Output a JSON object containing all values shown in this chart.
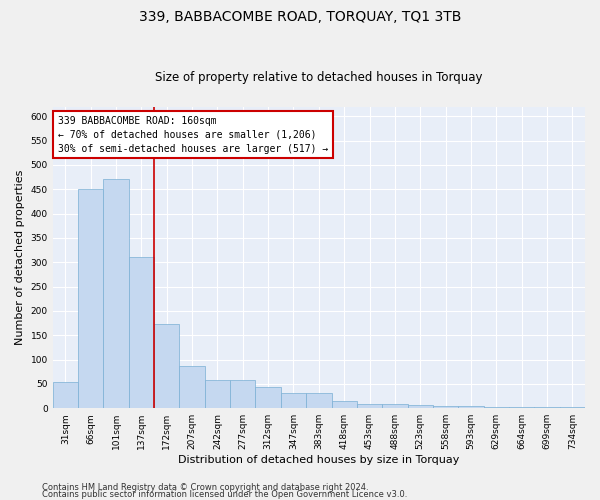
{
  "title": "339, BABBACOMBE ROAD, TORQUAY, TQ1 3TB",
  "subtitle": "Size of property relative to detached houses in Torquay",
  "xlabel": "Distribution of detached houses by size in Torquay",
  "ylabel": "Number of detached properties",
  "categories": [
    "31sqm",
    "66sqm",
    "101sqm",
    "137sqm",
    "172sqm",
    "207sqm",
    "242sqm",
    "277sqm",
    "312sqm",
    "347sqm",
    "383sqm",
    "418sqm",
    "453sqm",
    "488sqm",
    "523sqm",
    "558sqm",
    "593sqm",
    "629sqm",
    "664sqm",
    "699sqm",
    "734sqm"
  ],
  "values": [
    54,
    450,
    470,
    311,
    174,
    87,
    58,
    58,
    43,
    31,
    31,
    15,
    9,
    8,
    7,
    5,
    5,
    3,
    3,
    2,
    3
  ],
  "bar_color": "#c5d8f0",
  "bar_edge_color": "#7aafd4",
  "vline_position": 3.5,
  "vline_color": "#cc0000",
  "annotation_text": "339 BABBACOMBE ROAD: 160sqm\n← 70% of detached houses are smaller (1,206)\n30% of semi-detached houses are larger (517) →",
  "annotation_box_color": "#ffffff",
  "annotation_box_edge_color": "#cc0000",
  "ylim": [
    0,
    620
  ],
  "yticks": [
    0,
    50,
    100,
    150,
    200,
    250,
    300,
    350,
    400,
    450,
    500,
    550,
    600
  ],
  "background_color": "#e8eef8",
  "grid_color": "#ffffff",
  "fig_background": "#f0f0f0",
  "footer_line1": "Contains HM Land Registry data © Crown copyright and database right 2024.",
  "footer_line2": "Contains public sector information licensed under the Open Government Licence v3.0.",
  "title_fontsize": 10,
  "subtitle_fontsize": 8.5,
  "tick_fontsize": 6.5,
  "ylabel_fontsize": 8,
  "xlabel_fontsize": 8,
  "footer_fontsize": 6,
  "annotation_fontsize": 7
}
